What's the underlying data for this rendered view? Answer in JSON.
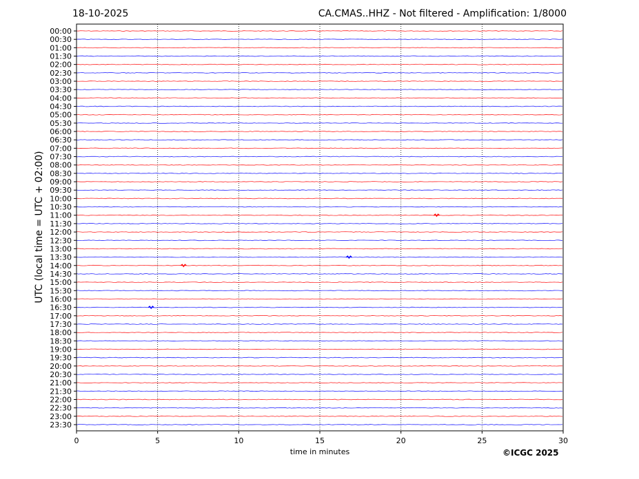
{
  "header": {
    "date": "18-10-2025",
    "title": "CA.CMAS..HHZ - Not filtered - Amplification: 1/8000"
  },
  "copyright": "©ICGC 2025",
  "chart_data": {
    "type": "line",
    "subtype": "helicorder",
    "xlabel": "time in minutes",
    "ylabel": "UTC (local time = UTC + 02:00)",
    "xlim": [
      0,
      30
    ],
    "xticks": [
      "0",
      "5",
      "10",
      "15",
      "20",
      "25",
      "30"
    ],
    "grid": "vertical dotted at 5-minute intervals",
    "rows": [
      "00:00",
      "00:30",
      "01:00",
      "01:30",
      "02:00",
      "02:30",
      "03:00",
      "03:30",
      "04:00",
      "04:30",
      "05:00",
      "05:30",
      "06:00",
      "06:30",
      "07:00",
      "07:30",
      "08:00",
      "08:30",
      "09:00",
      "09:30",
      "10:00",
      "10:30",
      "11:00",
      "11:30",
      "12:00",
      "12:30",
      "13:00",
      "13:30",
      "14:00",
      "14:30",
      "15:00",
      "15:30",
      "16:00",
      "16:30",
      "17:00",
      "17:30",
      "18:00",
      "18:30",
      "19:00",
      "19:30",
      "20:00",
      "20:30",
      "21:00",
      "21:30",
      "22:00",
      "22:30",
      "23:00",
      "23:30"
    ],
    "trace_colors": [
      "#ff0000",
      "#0000ff"
    ],
    "events": [
      {
        "row": "11:00",
        "minute": 22.2
      },
      {
        "row": "13:30",
        "minute": 16.8
      },
      {
        "row": "14:00",
        "minute": 6.6
      },
      {
        "row": "16:30",
        "minute": 4.6
      }
    ]
  }
}
